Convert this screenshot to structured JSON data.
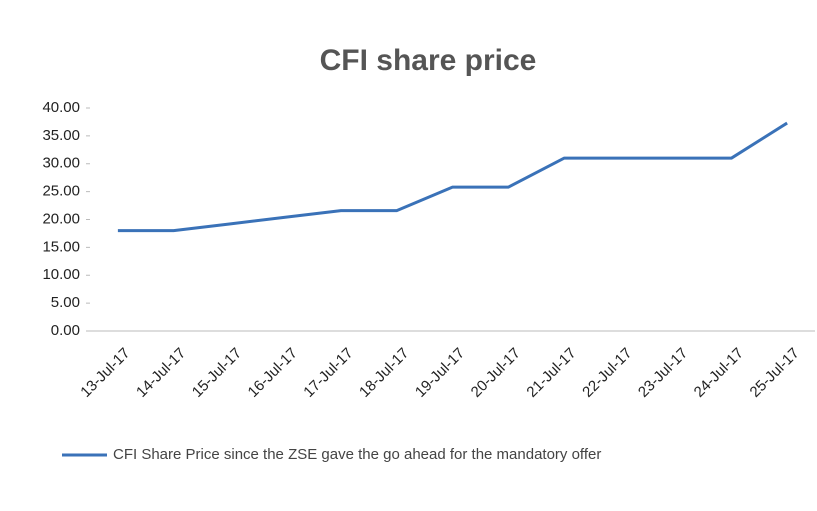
{
  "chart_data": {
    "type": "line",
    "title": "CFI share price",
    "categories": [
      "13-Jul-17",
      "14-Jul-17",
      "15-Jul-17",
      "16-Jul-17",
      "17-Jul-17",
      "18-Jul-17",
      "19-Jul-17",
      "20-Jul-17",
      "21-Jul-17",
      "22-Jul-17",
      "23-Jul-17",
      "24-Jul-17",
      "25-Jul-17"
    ],
    "series": [
      {
        "name": "CFI Share Price since the ZSE gave the go ahead for the mandatory offer",
        "color": "#3a72b8",
        "values": [
          18.0,
          18.0,
          19.2,
          20.4,
          21.6,
          21.6,
          25.8,
          25.8,
          31.0,
          31.0,
          31.0,
          31.0,
          37.3
        ]
      }
    ],
    "ylim": [
      0,
      40
    ],
    "yticks": [
      {
        "value": 0,
        "label": "0.00"
      },
      {
        "value": 5,
        "label": "5.00"
      },
      {
        "value": 10,
        "label": "10.00"
      },
      {
        "value": 15,
        "label": "15.00"
      },
      {
        "value": 20,
        "label": "20.00"
      },
      {
        "value": 25,
        "label": "25.00"
      },
      {
        "value": 30,
        "label": "30.00"
      },
      {
        "value": 35,
        "label": "35.00"
      },
      {
        "value": 40,
        "label": "40.00"
      }
    ],
    "grid": false,
    "legend": "bottom"
  }
}
